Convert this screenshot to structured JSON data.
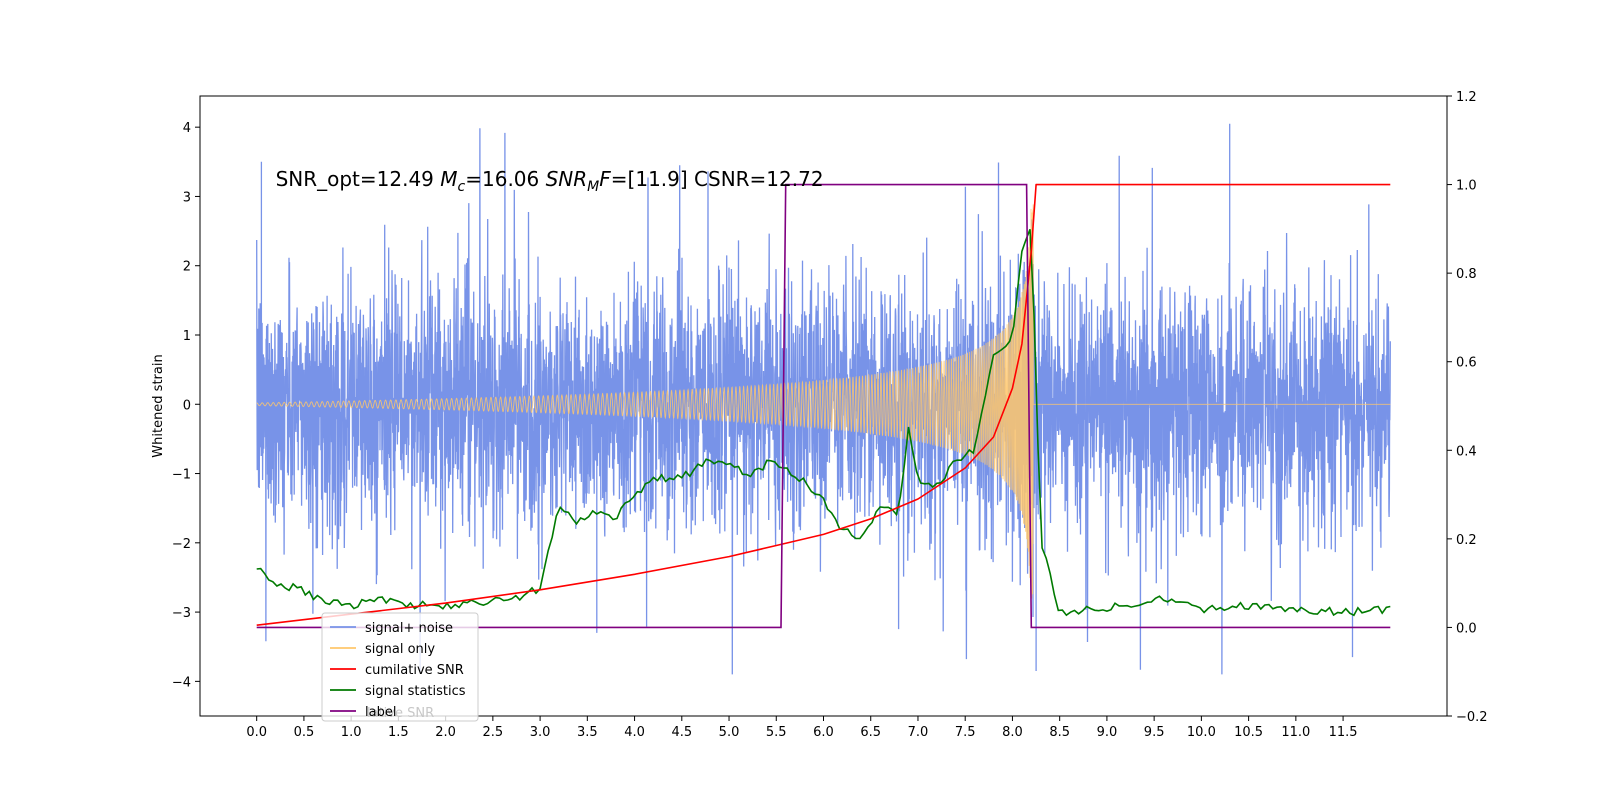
{
  "chart_data": {
    "type": "line",
    "title": "",
    "ylabel_left": "Whitened strain",
    "ylabel_right": "",
    "xlabel": "",
    "xlim": [
      -0.6,
      12.6
    ],
    "ylim_left": [
      -4.5,
      4.45
    ],
    "ylim_right": [
      -0.2,
      1.2
    ],
    "x_ticks": [
      "0.0",
      "0.5",
      "1.0",
      "1.5",
      "2.0",
      "2.5",
      "3.0",
      "3.5",
      "4.0",
      "4.5",
      "5.0",
      "5.5",
      "6.0",
      "6.5",
      "7.0",
      "7.5",
      "8.0",
      "8.5",
      "9.0",
      "9.5",
      "10.0",
      "10.5",
      "11.0",
      "11.5"
    ],
    "y_ticks_left": [
      "−4",
      "−3",
      "−2",
      "−1",
      "0",
      "1",
      "2",
      "3",
      "4"
    ],
    "y_ticks_right": [
      "−0.2",
      "0.0",
      "0.2",
      "0.4",
      "0.6",
      "0.8",
      "1.0",
      "1.2"
    ],
    "annotation": {
      "prefix": "SNR_opt=12.49 ",
      "mc_symbol": "M",
      "mc_sub": "c",
      "mc_value": "=16.06  ",
      "snr_symbol": "SNR",
      "snr_sub": "M",
      "snr_f": "F",
      "snr_value": "=[11.9]   CSNR=12.72"
    },
    "grid": false,
    "legend_position": "lower-left",
    "legend": [
      {
        "label": "signal+ noise",
        "color": "#7893e8"
      },
      {
        "label": "signal only",
        "color": "#ffc76b"
      },
      {
        "label": "cumilative SNR",
        "color": "#ff0000"
      },
      {
        "label": "signal statistics",
        "color": "#007a00"
      },
      {
        "label": "label",
        "color": "#800080"
      }
    ],
    "legend_ghost_text": "lative SNR",
    "series": [
      {
        "name": "signal+ noise",
        "axis": "left",
        "color": "#7893e8",
        "t_range": [
          0.0,
          12.0
        ],
        "noise_envelope": [
          -2.0,
          2.3
        ],
        "note_peaks": [
          [
            0.05,
            3.5
          ],
          [
            3.6,
            -3.3
          ],
          [
            8.25,
            -3.85
          ],
          [
            10.3,
            4.05
          ],
          [
            11.6,
            -3.65
          ]
        ]
      },
      {
        "name": "signal only",
        "axis": "left",
        "color": "#ffc76b",
        "chirp_start": 0.0,
        "merger_time": 8.22,
        "amplitude_at_start": 0.02,
        "amplitude_at_merger": 3.0
      },
      {
        "name": "cumilative SNR",
        "axis": "right",
        "color": "#ff0000",
        "x": [
          0.0,
          1.0,
          2.0,
          3.0,
          4.0,
          5.0,
          5.5,
          6.0,
          6.5,
          7.0,
          7.5,
          7.8,
          8.0,
          8.1,
          8.2,
          8.25,
          12.0
        ],
        "y": [
          0.005,
          0.03,
          0.055,
          0.085,
          0.12,
          0.16,
          0.185,
          0.21,
          0.245,
          0.29,
          0.36,
          0.43,
          0.54,
          0.64,
          0.85,
          1.0,
          1.0
        ]
      },
      {
        "name": "signal statistics",
        "axis": "right",
        "color": "#007a00",
        "x": [
          0.0,
          0.15,
          0.4,
          0.7,
          1.0,
          1.3,
          1.6,
          2.0,
          2.4,
          2.8,
          3.0,
          3.2,
          3.4,
          3.6,
          3.8,
          4.0,
          4.2,
          4.4,
          4.6,
          4.8,
          5.0,
          5.2,
          5.4,
          5.6,
          5.8,
          6.0,
          6.2,
          6.4,
          6.6,
          6.8,
          6.9,
          7.0,
          7.2,
          7.4,
          7.6,
          7.8,
          8.0,
          8.1,
          8.2,
          8.3,
          8.5,
          8.8,
          9.2,
          9.6,
          10.0,
          10.5,
          11.0,
          11.5,
          12.0
        ],
        "y": [
          0.135,
          0.1,
          0.09,
          0.06,
          0.05,
          0.065,
          0.05,
          0.05,
          0.055,
          0.07,
          0.09,
          0.27,
          0.24,
          0.26,
          0.25,
          0.3,
          0.34,
          0.33,
          0.35,
          0.38,
          0.37,
          0.34,
          0.37,
          0.36,
          0.33,
          0.29,
          0.22,
          0.2,
          0.28,
          0.26,
          0.45,
          0.33,
          0.32,
          0.38,
          0.4,
          0.62,
          0.65,
          0.85,
          0.9,
          0.2,
          0.03,
          0.04,
          0.05,
          0.07,
          0.04,
          0.05,
          0.04,
          0.035,
          0.04
        ]
      },
      {
        "name": "label",
        "axis": "right",
        "color": "#800080",
        "x": [
          0.0,
          5.55,
          5.6,
          8.15,
          8.2,
          12.0
        ],
        "y": [
          0.0,
          0.0,
          1.0,
          1.0,
          0.0,
          0.0
        ]
      }
    ]
  }
}
